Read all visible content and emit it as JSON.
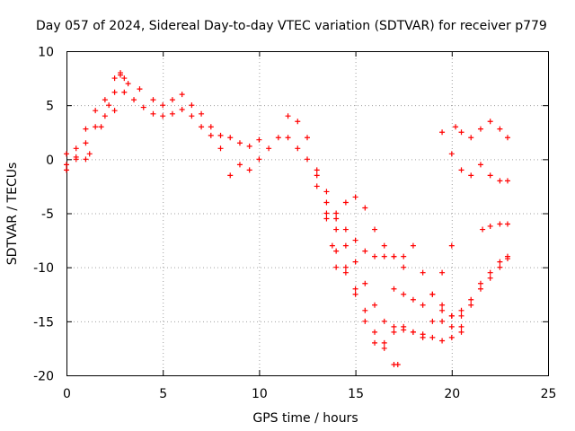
{
  "chart_data": {
    "type": "scatter",
    "title": "Day 057 of 2024, Sidereal Day-to-day VTEC variation (SDTVAR) for receiver p779",
    "xlabel": "GPS time / hours",
    "ylabel": "SDTVAR / TECUs",
    "xlim": [
      0,
      25
    ],
    "ylim": [
      -20,
      10
    ],
    "xticks": [
      0,
      5,
      10,
      15,
      20,
      25
    ],
    "yticks": [
      -20,
      -15,
      -10,
      -5,
      0,
      5,
      10
    ],
    "grid": true,
    "marker": "+",
    "color": "#ff0000",
    "series": [
      {
        "x": [
          0.0,
          0.5,
          1.0,
          1.5,
          2.0,
          2.5,
          2.8,
          3.2,
          3.8,
          4.5,
          5.0,
          5.5,
          6.0,
          6.5,
          7.0,
          7.5,
          8.0,
          8.5,
          9.0,
          9.5,
          10.0,
          10.5,
          11.0,
          11.5
        ],
        "y": [
          -0.5,
          1.0,
          2.8,
          4.5,
          5.5,
          6.2,
          7.8,
          7.0,
          6.5,
          5.5,
          5.0,
          5.5,
          6.0,
          5.0,
          4.2,
          3.0,
          2.2,
          2.0,
          1.5,
          1.2,
          1.8,
          1.0,
          2.0,
          4.0
        ]
      },
      {
        "x": [
          0.0,
          0.5,
          1.0,
          1.5,
          2.0,
          2.5,
          3.0,
          3.5,
          4.0,
          4.5,
          5.0,
          5.5,
          6.0,
          6.5,
          7.0,
          7.5,
          8.0,
          8.5,
          9.0,
          9.5,
          10.0
        ],
        "y": [
          -1.0,
          0.0,
          1.5,
          3.0,
          4.0,
          4.5,
          6.2,
          5.5,
          4.8,
          4.2,
          4.0,
          4.2,
          4.6,
          4.0,
          3.0,
          2.2,
          1.0,
          -1.5,
          -0.5,
          -1.0,
          0.0
        ]
      },
      {
        "x": [
          0.0,
          0.5,
          1.0,
          1.2
        ],
        "y": [
          0.5,
          0.2,
          0.0,
          0.5
        ]
      },
      {
        "x": [
          1.8,
          2.2,
          2.5,
          2.8,
          3.0
        ],
        "y": [
          3.0,
          5.0,
          7.5,
          8.0,
          7.5
        ]
      },
      {
        "x": [
          11.5,
          12.0,
          12.5,
          13.0,
          13.5,
          13.8,
          14.0,
          14.5,
          15.0,
          15.5,
          16.0,
          16.5,
          17.0,
          17.5,
          18.0,
          18.5
        ],
        "y": [
          2.0,
          3.5,
          2.0,
          -1.0,
          -4.0,
          -8.0,
          -10.0,
          -10.5,
          -12.0,
          -14.0,
          -16.0,
          -17.0,
          -16.0,
          -15.5,
          -16.0,
          -16.5
        ]
      },
      {
        "x": [
          12.0,
          12.5,
          13.0,
          13.5,
          14.0,
          14.5,
          15.0,
          15.5,
          16.0,
          16.5,
          17.0,
          17.2
        ],
        "y": [
          1.0,
          0.0,
          -2.5,
          -5.5,
          -8.5,
          -10.0,
          -12.5,
          -15.0,
          -17.0,
          -17.5,
          -19.0,
          -19.0
        ]
      },
      {
        "x": [
          13.5,
          14.0,
          14.5,
          15.0,
          15.5,
          16.0,
          16.5,
          17.0,
          17.5,
          18.0,
          18.5,
          19.0,
          19.5,
          20.0,
          20.5
        ],
        "y": [
          -5.0,
          -6.5,
          -8.0,
          -9.5,
          -11.5,
          -13.5,
          -15.0,
          -15.5,
          -15.8,
          -16.0,
          -16.2,
          -16.5,
          -16.8,
          -16.5,
          -15.5
        ]
      },
      {
        "x": [
          14.0,
          14.5,
          15.0,
          15.5,
          16.0,
          16.5,
          17.0,
          17.5
        ],
        "y": [
          -5.5,
          -4.0,
          -3.5,
          -4.5,
          -6.5,
          -8.0,
          -9.0,
          -9.0
        ]
      },
      {
        "x": [
          13.0,
          13.5,
          14.0,
          14.5,
          15.0,
          15.5,
          16.0,
          16.5,
          17.0
        ],
        "y": [
          -1.5,
          -3.0,
          -5.0,
          -6.5,
          -7.5,
          -8.5,
          -9.0,
          -9.0,
          -9.0
        ]
      },
      {
        "x": [
          17.0,
          17.5,
          18.0,
          18.5,
          19.0,
          19.5,
          20.0
        ],
        "y": [
          -12.0,
          -12.5,
          -13.0,
          -13.5,
          -12.5,
          -10.5,
          -8.0
        ]
      },
      {
        "x": [
          17.5,
          18.0,
          18.5,
          19.0,
          19.5,
          20.0,
          20.5
        ],
        "y": [
          -10.0,
          -8.0,
          -10.5,
          -12.5,
          -14.0,
          -15.5,
          -16.0
        ]
      },
      {
        "x": [
          19.0,
          19.5,
          20.0,
          20.5,
          21.0,
          21.5,
          22.0,
          22.5,
          22.9
        ],
        "y": [
          -15.0,
          -15.0,
          -14.5,
          -14.0,
          -13.0,
          -11.5,
          -10.5,
          -9.5,
          -9.2
        ]
      },
      {
        "x": [
          19.5,
          20.0,
          20.5,
          21.0,
          21.5,
          22.0,
          22.5,
          22.9
        ],
        "y": [
          -13.5,
          -14.5,
          -14.5,
          -13.5,
          -12.0,
          -11.0,
          -10.0,
          -9.0
        ]
      },
      {
        "x": [
          21.6,
          22.0,
          22.5,
          22.9
        ],
        "y": [
          -6.5,
          -6.2,
          -6.0,
          -6.0
        ]
      },
      {
        "x": [
          19.5,
          20.0,
          20.5,
          21.0,
          21.5,
          22.0,
          22.5,
          22.9
        ],
        "y": [
          2.5,
          0.5,
          -1.0,
          -1.5,
          -0.5,
          -1.5,
          -2.0,
          -2.0
        ]
      },
      {
        "x": [
          20.2,
          20.5,
          21.0,
          21.5,
          22.0,
          22.5,
          22.9
        ],
        "y": [
          3.0,
          2.5,
          2.0,
          2.8,
          3.5,
          2.8,
          2.0
        ]
      }
    ]
  }
}
